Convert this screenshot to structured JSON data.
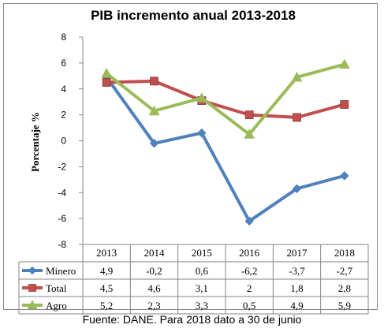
{
  "chart_data": {
    "type": "line",
    "title": "PIB incremento anual 2013-2018",
    "ylabel": "Porcentaje %",
    "xlabel": "",
    "categories": [
      "2013",
      "2014",
      "2015",
      "2016",
      "2017",
      "2018"
    ],
    "ylim": [
      -8,
      8
    ],
    "yticks": [
      "8",
      "6",
      "4",
      "2",
      "0",
      "-2",
      "-4",
      "-6",
      "-8"
    ],
    "grid": false,
    "legend": "data table below x-axis",
    "series": [
      {
        "name": "Minero",
        "values": [
          4.9,
          -0.2,
          0.6,
          -6.2,
          -3.7,
          -2.7
        ],
        "labels": [
          "4,9",
          "-0,2",
          "0,6",
          "-6,2",
          "-3,7",
          "-2,7"
        ],
        "color": "#4f81bd",
        "marker": "diamond"
      },
      {
        "name": "Total",
        "values": [
          4.5,
          4.6,
          3.1,
          2,
          1.8,
          2.8
        ],
        "labels": [
          "4,5",
          "4,6",
          "3,1",
          "2",
          "1,8",
          "2,8"
        ],
        "color": "#c0504d",
        "marker": "square"
      },
      {
        "name": "Agro",
        "values": [
          5.2,
          2.3,
          3.3,
          0.5,
          4.9,
          5.9
        ],
        "labels": [
          "5,2",
          "2,3",
          "3,3",
          "0,5",
          "4,9",
          "5,9"
        ],
        "color": "#9bbb59",
        "marker": "triangle"
      }
    ]
  },
  "footer": {
    "note": "Fuente: DANE. Para 2018 dato a 30 de junio"
  }
}
